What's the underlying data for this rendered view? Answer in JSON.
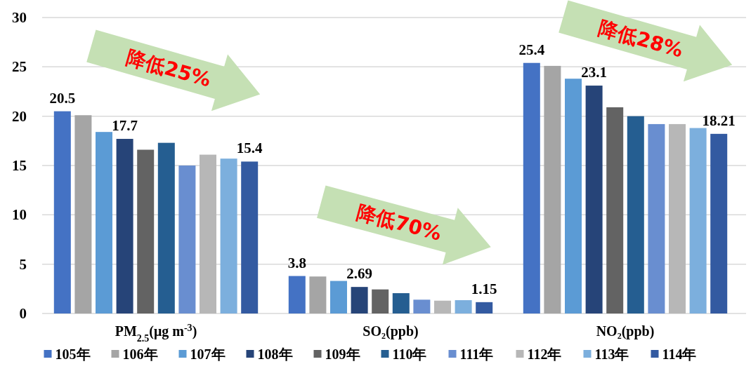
{
  "chart_data": {
    "type": "bar",
    "categories": [
      "PM$_{2.5}$(μg m$^{-3}$)",
      "SO₂(ppb)",
      "NO₂(ppb)"
    ],
    "ylim": [
      0,
      30
    ],
    "yticks": [
      0,
      5,
      10,
      15,
      20,
      25,
      30
    ],
    "grid": "y",
    "legend": "bottom",
    "series": [
      {
        "name": "105年",
        "color": "#4472c4",
        "values": [
          20.5,
          3.8,
          25.4
        ],
        "value_labels": [
          "20.5",
          "3.8",
          "25.4"
        ]
      },
      {
        "name": "106年",
        "color": "#a5a5a5",
        "values": [
          20.1,
          3.75,
          25.1
        ]
      },
      {
        "name": "107年",
        "color": "#5b9bd5",
        "values": [
          18.4,
          3.3,
          23.8
        ]
      },
      {
        "name": "108年",
        "color": "#264478",
        "values": [
          17.7,
          2.69,
          23.1
        ],
        "value_labels": [
          "17.7",
          "2.69",
          "23.1"
        ]
      },
      {
        "name": "109年",
        "color": "#636363",
        "values": [
          16.6,
          2.44,
          20.9
        ]
      },
      {
        "name": "110年",
        "color": "#255e91",
        "values": [
          17.3,
          2.06,
          20.0
        ]
      },
      {
        "name": "111年",
        "color": "#698ed0",
        "values": [
          15.0,
          1.4,
          19.2
        ]
      },
      {
        "name": "112年",
        "color": "#b7b7b7",
        "values": [
          16.1,
          1.3,
          19.2
        ]
      },
      {
        "name": "113年",
        "color": "#7cafdd",
        "values": [
          15.7,
          1.35,
          18.8
        ]
      },
      {
        "name": "114年",
        "color": "#335aa1",
        "values": [
          15.4,
          1.15,
          18.21
        ],
        "value_labels": [
          "15.4",
          "1.15",
          "18.21"
        ]
      }
    ],
    "annotations": [
      "降低25%",
      "降低70%",
      "降低28%"
    ]
  }
}
